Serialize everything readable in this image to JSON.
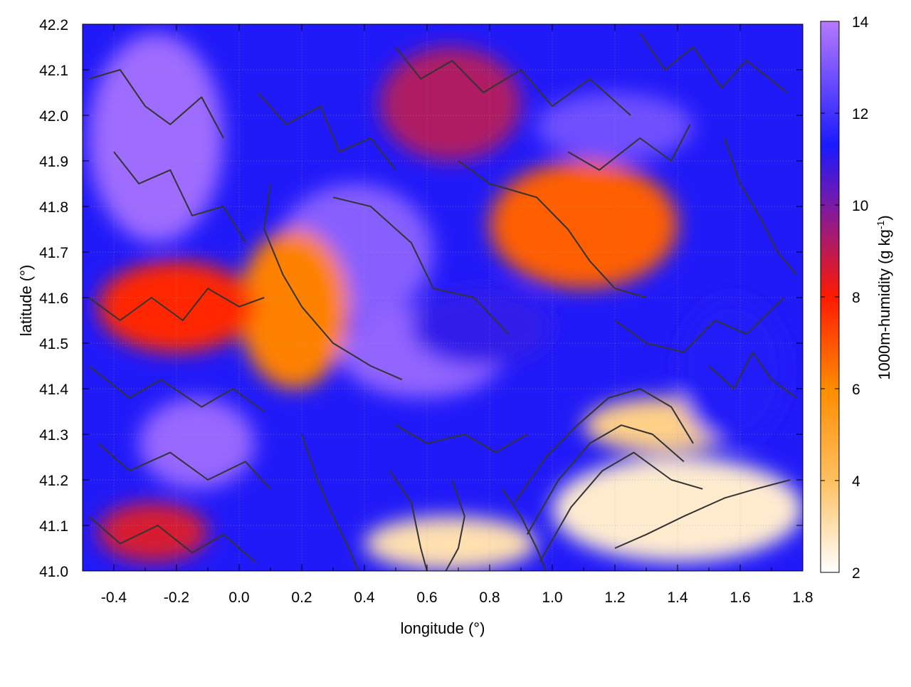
{
  "chart_data": {
    "type": "heatmap",
    "xlabel": "longitude (°)",
    "ylabel": "latitude (°)",
    "colorbar_label": "1000m-humidity (g kg",
    "colorbar_label_sup": "-1",
    "colorbar_label_end": ")",
    "xlim": [
      -0.5,
      1.8
    ],
    "ylim": [
      41.0,
      42.2
    ],
    "clim": [
      2,
      14
    ],
    "x_ticks": [
      "-0.4",
      "-0.2",
      "0.0",
      "0.2",
      "0.4",
      "0.6",
      "0.8",
      "1.0",
      "1.2",
      "1.4",
      "1.6",
      "1.8"
    ],
    "x_tick_values": [
      -0.4,
      -0.2,
      0.0,
      0.2,
      0.4,
      0.6,
      0.8,
      1.0,
      1.2,
      1.4,
      1.6,
      1.8
    ],
    "y_ticks": [
      "41.0",
      "41.1",
      "41.2",
      "41.3",
      "41.4",
      "41.5",
      "41.6",
      "41.7",
      "41.8",
      "41.9",
      "42.0",
      "42.1",
      "42.2"
    ],
    "y_tick_values": [
      41.0,
      41.1,
      41.2,
      41.3,
      41.4,
      41.5,
      41.6,
      41.7,
      41.8,
      41.9,
      42.0,
      42.1,
      42.2
    ],
    "c_ticks": [
      "2",
      "4",
      "6",
      "8",
      "10",
      "12",
      "14"
    ],
    "c_tick_values": [
      2,
      4,
      6,
      8,
      10,
      12,
      14
    ],
    "colormap": [
      {
        "v": 2,
        "color": "#ffffff"
      },
      {
        "v": 4,
        "color": "#ffc060"
      },
      {
        "v": 6,
        "color": "#ff8c00"
      },
      {
        "v": 8,
        "color": "#ff1a00"
      },
      {
        "v": 10,
        "color": "#7a1aa6"
      },
      {
        "v": 11.3,
        "color": "#1a1aff"
      },
      {
        "v": 14,
        "color": "#b57aff"
      }
    ],
    "grid": true,
    "contour_color": "#333333",
    "field_regions": [
      {
        "lon": [
          -0.48,
          -0.05
        ],
        "lat": [
          41.72,
          42.18
        ],
        "value": 13.6
      },
      {
        "lon": [
          0.12,
          0.62
        ],
        "lat": [
          41.55,
          41.85
        ],
        "value": 13.2
      },
      {
        "lon": [
          0.32,
          0.85
        ],
        "lat": [
          41.38,
          41.58
        ],
        "value": 13.4
      },
      {
        "lon": [
          -0.32,
          0.05
        ],
        "lat": [
          41.18,
          41.38
        ],
        "value": 13.5
      },
      {
        "lon": [
          0.95,
          1.45
        ],
        "lat": [
          41.9,
          42.05
        ],
        "value": 12.8
      },
      {
        "lon": [
          0.0,
          0.35
        ],
        "lat": [
          41.4,
          41.75
        ],
        "value": 6.2
      },
      {
        "lon": [
          0.8,
          1.4
        ],
        "lat": [
          41.62,
          41.9
        ],
        "value": 6.8
      },
      {
        "lon": [
          -0.45,
          0.05
        ],
        "lat": [
          41.48,
          41.68
        ],
        "value": 7.8
      },
      {
        "lon": [
          1.0,
          1.8
        ],
        "lat": [
          41.02,
          41.25
        ],
        "value": 2.6
      },
      {
        "lon": [
          0.4,
          0.95
        ],
        "lat": [
          41.0,
          41.12
        ],
        "value": 3.0
      },
      {
        "lon": [
          1.1,
          1.6
        ],
        "lat": [
          41.26,
          41.38
        ],
        "value": 3.5
      },
      {
        "lon": [
          1.4,
          1.75
        ],
        "lat": [
          41.28,
          41.6
        ],
        "value": 11.2
      },
      {
        "lon": [
          0.55,
          1.0
        ],
        "lat": [
          41.45,
          41.62
        ],
        "value": 11.0
      },
      {
        "lon": [
          -0.45,
          -0.1
        ],
        "lat": [
          41.02,
          41.15
        ],
        "value": 8.6
      },
      {
        "lon": [
          0.45,
          0.9
        ],
        "lat": [
          41.9,
          42.15
        ],
        "value": 9.2
      }
    ],
    "contour_lines": [
      [
        [
          -0.48,
          42.08
        ],
        [
          -0.38,
          42.1
        ],
        [
          -0.3,
          42.02
        ],
        [
          -0.22,
          41.98
        ],
        [
          -0.12,
          42.04
        ],
        [
          -0.05,
          41.95
        ]
      ],
      [
        [
          -0.4,
          41.92
        ],
        [
          -0.32,
          41.85
        ],
        [
          -0.22,
          41.88
        ],
        [
          -0.15,
          41.78
        ],
        [
          -0.05,
          41.8
        ],
        [
          0.02,
          41.72
        ]
      ],
      [
        [
          0.06,
          42.05
        ],
        [
          0.15,
          41.98
        ],
        [
          0.26,
          42.02
        ],
        [
          0.32,
          41.92
        ],
        [
          0.42,
          41.95
        ],
        [
          0.5,
          41.88
        ]
      ],
      [
        [
          0.5,
          42.15
        ],
        [
          0.58,
          42.08
        ],
        [
          0.68,
          42.12
        ],
        [
          0.78,
          42.05
        ],
        [
          0.9,
          42.1
        ],
        [
          1.0,
          42.02
        ],
        [
          1.12,
          42.08
        ],
        [
          1.25,
          42.0
        ]
      ],
      [
        [
          1.28,
          42.18
        ],
        [
          1.36,
          42.1
        ],
        [
          1.45,
          42.15
        ],
        [
          1.54,
          42.06
        ],
        [
          1.62,
          42.12
        ],
        [
          1.75,
          42.05
        ]
      ],
      [
        [
          1.05,
          41.92
        ],
        [
          1.15,
          41.88
        ],
        [
          1.28,
          41.95
        ],
        [
          1.38,
          41.9
        ],
        [
          1.44,
          41.98
        ]
      ],
      [
        [
          0.1,
          41.85
        ],
        [
          0.08,
          41.75
        ],
        [
          0.14,
          41.65
        ],
        [
          0.2,
          41.58
        ],
        [
          0.3,
          41.5
        ],
        [
          0.42,
          41.45
        ],
        [
          0.52,
          41.42
        ]
      ],
      [
        [
          0.3,
          41.82
        ],
        [
          0.42,
          41.8
        ],
        [
          0.55,
          41.72
        ],
        [
          0.62,
          41.62
        ],
        [
          0.75,
          41.6
        ],
        [
          0.86,
          41.52
        ]
      ],
      [
        [
          0.7,
          41.9
        ],
        [
          0.8,
          41.85
        ],
        [
          0.95,
          41.82
        ],
        [
          1.05,
          41.75
        ],
        [
          1.12,
          41.68
        ],
        [
          1.2,
          41.62
        ],
        [
          1.3,
          41.6
        ]
      ],
      [
        [
          -0.48,
          41.6
        ],
        [
          -0.38,
          41.55
        ],
        [
          -0.28,
          41.6
        ],
        [
          -0.18,
          41.55
        ],
        [
          -0.1,
          41.62
        ],
        [
          0.0,
          41.58
        ],
        [
          0.08,
          41.6
        ]
      ],
      [
        [
          -0.48,
          41.45
        ],
        [
          -0.35,
          41.38
        ],
        [
          -0.25,
          41.42
        ],
        [
          -0.12,
          41.36
        ],
        [
          -0.02,
          41.4
        ],
        [
          0.08,
          41.35
        ]
      ],
      [
        [
          -0.45,
          41.28
        ],
        [
          -0.35,
          41.22
        ],
        [
          -0.22,
          41.26
        ],
        [
          -0.1,
          41.2
        ],
        [
          0.02,
          41.24
        ],
        [
          0.1,
          41.18
        ]
      ],
      [
        [
          -0.48,
          41.12
        ],
        [
          -0.38,
          41.06
        ],
        [
          -0.26,
          41.1
        ],
        [
          -0.15,
          41.04
        ],
        [
          -0.05,
          41.08
        ],
        [
          0.05,
          41.02
        ]
      ],
      [
        [
          0.2,
          41.3
        ],
        [
          0.25,
          41.2
        ],
        [
          0.3,
          41.12
        ],
        [
          0.35,
          41.05
        ],
        [
          0.38,
          41.0
        ]
      ],
      [
        [
          0.48,
          41.22
        ],
        [
          0.55,
          41.15
        ],
        [
          0.58,
          41.05
        ],
        [
          0.6,
          41.0
        ]
      ],
      [
        [
          0.68,
          41.2
        ],
        [
          0.72,
          41.12
        ],
        [
          0.7,
          41.05
        ],
        [
          0.66,
          41.0
        ]
      ],
      [
        [
          0.84,
          41.18
        ],
        [
          0.9,
          41.12
        ],
        [
          0.95,
          41.05
        ],
        [
          0.98,
          41.0
        ]
      ],
      [
        [
          0.88,
          41.15
        ],
        [
          0.98,
          41.25
        ],
        [
          1.08,
          41.32
        ],
        [
          1.18,
          41.38
        ],
        [
          1.28,
          41.4
        ],
        [
          1.38,
          41.36
        ],
        [
          1.45,
          41.28
        ]
      ],
      [
        [
          0.92,
          41.08
        ],
        [
          1.02,
          41.2
        ],
        [
          1.12,
          41.28
        ],
        [
          1.22,
          41.32
        ],
        [
          1.32,
          41.3
        ],
        [
          1.42,
          41.24
        ]
      ],
      [
        [
          0.96,
          41.02
        ],
        [
          1.06,
          41.14
        ],
        [
          1.16,
          41.22
        ],
        [
          1.26,
          41.26
        ],
        [
          1.38,
          41.2
        ],
        [
          1.48,
          41.18
        ]
      ],
      [
        [
          1.2,
          41.05
        ],
        [
          1.3,
          41.08
        ],
        [
          1.42,
          41.12
        ],
        [
          1.55,
          41.16
        ],
        [
          1.65,
          41.18
        ],
        [
          1.76,
          41.2
        ]
      ],
      [
        [
          1.5,
          41.45
        ],
        [
          1.58,
          41.4
        ],
        [
          1.64,
          41.48
        ],
        [
          1.7,
          41.42
        ],
        [
          1.78,
          41.38
        ]
      ],
      [
        [
          1.2,
          41.55
        ],
        [
          1.3,
          41.5
        ],
        [
          1.42,
          41.48
        ],
        [
          1.52,
          41.55
        ],
        [
          1.62,
          41.52
        ],
        [
          1.74,
          41.6
        ]
      ],
      [
        [
          0.5,
          41.32
        ],
        [
          0.6,
          41.28
        ],
        [
          0.72,
          41.3
        ],
        [
          0.82,
          41.26
        ],
        [
          0.92,
          41.3
        ]
      ],
      [
        [
          1.55,
          41.95
        ],
        [
          1.6,
          41.85
        ],
        [
          1.66,
          41.78
        ],
        [
          1.72,
          41.7
        ],
        [
          1.78,
          41.65
        ]
      ]
    ]
  }
}
